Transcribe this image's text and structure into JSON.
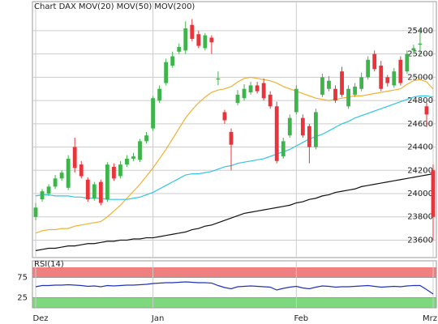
{
  "chart_data": {
    "type": "candlestick",
    "title": "Chart DAX",
    "categories": [
      "Dez",
      null,
      null,
      null,
      null,
      null,
      null,
      null,
      null,
      null,
      null,
      null,
      null,
      null,
      null,
      null,
      null,
      null,
      "Jan",
      null,
      null,
      null,
      null,
      null,
      null,
      null,
      null,
      null,
      null,
      null,
      null,
      null,
      null,
      null,
      null,
      null,
      null,
      null,
      null,
      null,
      "Feb",
      null,
      null,
      null,
      null,
      null,
      null,
      null,
      null,
      null,
      null,
      null,
      null,
      null,
      null,
      null,
      null,
      null,
      null,
      null,
      null,
      "Mrz"
    ],
    "open": [
      23800,
      23950,
      24000,
      24060,
      24130,
      24050,
      24400,
      24250,
      24120,
      23960,
      24100,
      23950,
      24230,
      24150,
      24250,
      24300,
      24290,
      24450,
      24560,
      24800,
      24950,
      25100,
      25220,
      25230,
      25450,
      25370,
      25250,
      25340,
      24980,
      24700,
      24530,
      24780,
      24820,
      24870,
      24930,
      24950,
      24850,
      24750,
      24320,
      24500,
      24700,
      24650,
      24580,
      24400,
      24850,
      24900,
      24900,
      25050,
      24750,
      24850,
      24900,
      25000,
      25200,
      25100,
      25000,
      24930,
      25150,
      25050,
      25230,
      25280,
      24750,
      24200
    ],
    "high": [
      23920,
      24040,
      24080,
      24160,
      24200,
      24330,
      24480,
      24280,
      24140,
      24100,
      24120,
      24270,
      24260,
      24280,
      24330,
      24350,
      24470,
      24530,
      24840,
      24930,
      25160,
      25220,
      25290,
      25480,
      25500,
      25400,
      25380,
      25360,
      25050,
      24720,
      24560,
      24890,
      24940,
      24960,
      24960,
      24990,
      24880,
      24790,
      24480,
      24680,
      24930,
      24680,
      24600,
      24730,
      25030,
      25010,
      24930,
      25090,
      24930,
      24950,
      25040,
      25180,
      25230,
      25140,
      25020,
      25080,
      25180,
      25230,
      25280,
      25420,
      24780,
      24250
    ],
    "low": [
      23770,
      23930,
      23980,
      24040,
      24110,
      24030,
      24180,
      24130,
      23930,
      23940,
      23900,
      23930,
      24110,
      24130,
      24230,
      24280,
      24270,
      24430,
      24540,
      24780,
      24930,
      25080,
      25200,
      25200,
      25310,
      25250,
      25230,
      25200,
      24930,
      24600,
      24200,
      24760,
      24800,
      24850,
      24860,
      24800,
      24730,
      24260,
      24300,
      24480,
      24680,
      24480,
      24260,
      24380,
      24830,
      24880,
      24780,
      24830,
      24730,
      24830,
      24880,
      24980,
      25050,
      24880,
      24920,
      24910,
      24930,
      25030,
      25200,
      25200,
      24570,
      23600
    ],
    "close": [
      23880,
      24020,
      24060,
      24130,
      24180,
      24300,
      24220,
      24150,
      23950,
      24080,
      23920,
      24250,
      24130,
      24250,
      24300,
      24320,
      24450,
      24500,
      24820,
      24900,
      25130,
      25180,
      25260,
      25420,
      25330,
      25270,
      25360,
      25300,
      24990,
      24630,
      24420,
      24850,
      24900,
      24930,
      24880,
      24820,
      24750,
      24280,
      24450,
      24650,
      24900,
      24500,
      24400,
      24700,
      25000,
      24970,
      24800,
      24850,
      24900,
      24920,
      25000,
      25150,
      25070,
      24900,
      24950,
      25050,
      24950,
      25200,
      25250,
      25290,
      24680,
      23800
    ],
    "up_color": "#3db54a",
    "down_color": "#e8343a",
    "series": [
      {
        "name": "MOV(20)",
        "color": "#f0b030",
        "values": [
          23660,
          23680,
          23690,
          23690,
          23700,
          23700,
          23720,
          23730,
          23740,
          23750,
          23760,
          23800,
          23850,
          23900,
          23960,
          24020,
          24080,
          24150,
          24220,
          24300,
          24380,
          24470,
          24560,
          24650,
          24720,
          24780,
          24830,
          24870,
          24890,
          24900,
          24920,
          24960,
          24990,
          25000,
          24990,
          24980,
          24970,
          24950,
          24920,
          24900,
          24880,
          24860,
          24840,
          24820,
          24810,
          24800,
          24810,
          24820,
          24830,
          24840,
          24840,
          24850,
          24860,
          24870,
          24880,
          24890,
          24900,
          24940,
          24970,
          24980,
          24960,
          24900
        ]
      },
      {
        "name": "MOV(50)",
        "color": "#30c4e4",
        "values": [
          23980,
          23990,
          23990,
          23980,
          23980,
          23980,
          23970,
          23970,
          23960,
          23960,
          23960,
          23950,
          23950,
          23950,
          23950,
          23960,
          23970,
          23990,
          24010,
          24040,
          24070,
          24100,
          24130,
          24160,
          24170,
          24170,
          24180,
          24190,
          24210,
          24230,
          24240,
          24260,
          24270,
          24280,
          24290,
          24300,
          24320,
          24340,
          24360,
          24380,
          24410,
          24440,
          24470,
          24490,
          24510,
          24540,
          24570,
          24600,
          24620,
          24650,
          24670,
          24690,
          24710,
          24730,
          24750,
          24770,
          24790,
          24810,
          24830,
          24840,
          24840,
          24830
        ]
      },
      {
        "name": "MOV(200)",
        "color": "#111111",
        "values": [
          23510,
          23520,
          23530,
          23530,
          23540,
          23550,
          23550,
          23560,
          23570,
          23570,
          23580,
          23590,
          23590,
          23600,
          23600,
          23610,
          23610,
          23620,
          23620,
          23630,
          23640,
          23650,
          23660,
          23670,
          23690,
          23700,
          23720,
          23730,
          23750,
          23770,
          23790,
          23810,
          23830,
          23840,
          23850,
          23860,
          23870,
          23880,
          23890,
          23900,
          23920,
          23930,
          23950,
          23960,
          23980,
          23990,
          24010,
          24020,
          24030,
          24040,
          24060,
          24070,
          24080,
          24090,
          24100,
          24110,
          24120,
          24130,
          24140,
          24150,
          24160,
          24170
        ]
      }
    ],
    "ylim": [
      23450,
      25650
    ],
    "yticks": [
      23600,
      23800,
      24000,
      24200,
      24400,
      24600,
      24800,
      25000,
      25200,
      25400
    ],
    "grid": true,
    "rsi": {
      "title": "RSI(14)",
      "color": "#2233bb",
      "upper_color": "#f08080",
      "lower_color": "#7ed87e",
      "values": [
        52,
        55,
        55,
        56,
        56,
        57,
        56,
        55,
        53,
        54,
        52,
        55,
        54,
        55,
        56,
        56,
        57,
        58,
        60,
        61,
        62,
        62,
        63,
        64,
        63,
        62,
        62,
        61,
        55,
        50,
        47,
        52,
        53,
        54,
        53,
        52,
        51,
        44,
        48,
        51,
        53,
        49,
        47,
        51,
        54,
        53,
        51,
        52,
        52,
        53,
        54,
        55,
        53,
        51,
        52,
        53,
        52,
        54,
        55,
        55,
        45,
        34
      ],
      "ylim": [
        0,
        100
      ],
      "yticks": [
        25,
        75
      ]
    }
  }
}
